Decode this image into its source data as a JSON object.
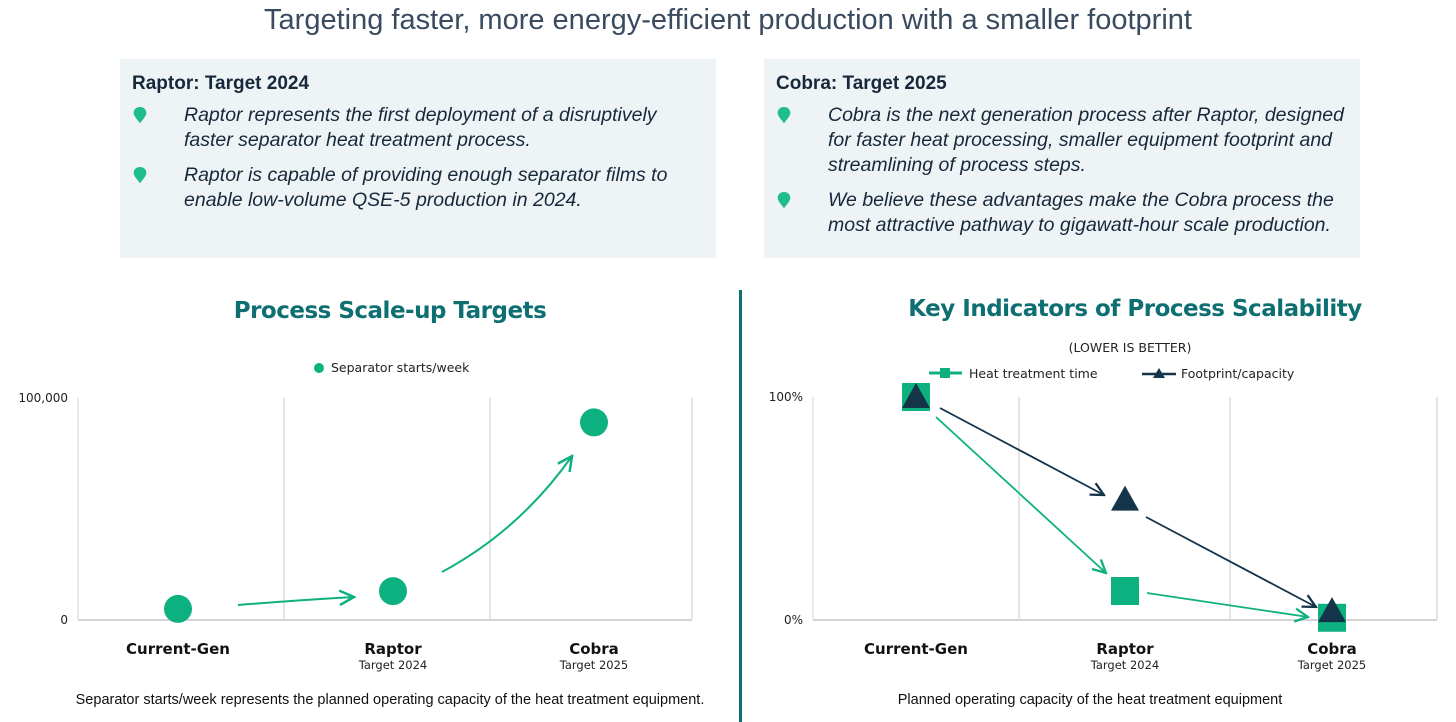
{
  "title": "Targeting faster, more energy-efficient production with a smaller footprint",
  "panels": [
    {
      "heading": "Raptor: Target 2024",
      "bullets": [
        "Raptor represents the first deployment of a disruptively faster separator heat treatment process.",
        "Raptor is capable of providing enough separator films to enable low-volume QSE-5 production in 2024."
      ]
    },
    {
      "heading": "Cobra: Target 2025",
      "bullets": [
        "Cobra is the next generation process after Raptor, designed for faster heat processing, smaller equipment footprint and streamlining of process steps.",
        "We believe these advantages make the Cobra process the most attractive pathway to gigawatt-hour scale production."
      ]
    }
  ],
  "colors": {
    "green": "#0db07f",
    "navy": "#14344a",
    "teal": "#0e6f73"
  },
  "chart_data": [
    {
      "type": "scatter",
      "title": "Process Scale-up Targets",
      "categories": [
        "Current-Gen",
        "Raptor",
        "Cobra"
      ],
      "category_sublabels": [
        "",
        "Target 2024",
        "Target 2025"
      ],
      "legend": [
        "Separator starts/week"
      ],
      "legend_position": "top-center",
      "series": [
        {
          "name": "Separator starts/week",
          "values": [
            5000,
            13000,
            89000
          ]
        }
      ],
      "ylim": [
        0,
        100000
      ],
      "yticks": [
        "0",
        "100,000"
      ],
      "grid": true,
      "caption": "Separator starts/week represents the planned operating capacity of the heat treatment equipment."
    },
    {
      "type": "scatter",
      "title": "Key Indicators of Process Scalability",
      "subtitle": "(LOWER IS BETTER)",
      "categories": [
        "Current-Gen",
        "Raptor",
        "Cobra"
      ],
      "category_sublabels": [
        "",
        "Target 2024",
        "Target 2025"
      ],
      "legend": [
        "Heat treatment time",
        "Footprint/capacity"
      ],
      "legend_position": "top-center",
      "series": [
        {
          "name": "Heat treatment time",
          "marker": "square",
          "values": [
            100,
            13,
            1
          ]
        },
        {
          "name": "Footprint/capacity",
          "marker": "triangle",
          "values": [
            100,
            54,
            4
          ]
        }
      ],
      "ylim": [
        0,
        100
      ],
      "yticks": [
        "0%",
        "100%"
      ],
      "grid": true,
      "caption": "Planned operating capacity of the heat treatment equipment"
    }
  ]
}
